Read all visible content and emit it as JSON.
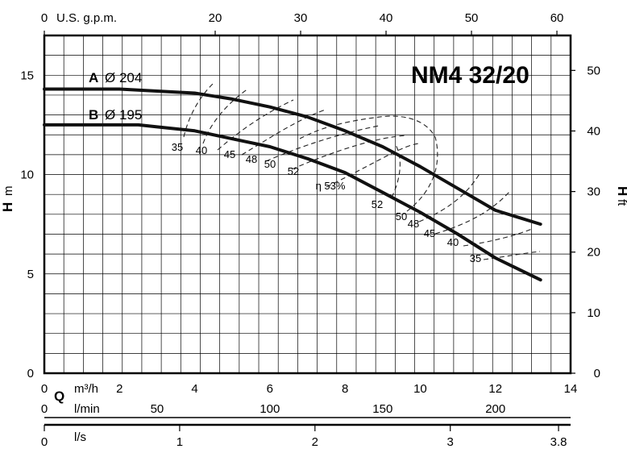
{
  "chart_data": {
    "type": "line",
    "title": "NM4 32/20",
    "xlabel_primary": "Q",
    "x_axes": [
      {
        "unit": "U.S. g.p.m.",
        "position": "top",
        "range": [
          0,
          60
        ],
        "ticks": [
          "0",
          "20",
          "30",
          "40",
          "50",
          "60"
        ]
      },
      {
        "unit": "m³/h",
        "position": "bottom",
        "range": [
          0,
          14
        ],
        "ticks": [
          "0",
          "2",
          "4",
          "6",
          "8",
          "10",
          "12",
          "14"
        ]
      },
      {
        "unit": "l/min",
        "position": "bottom",
        "range": [
          0,
          233.33
        ],
        "ticks": [
          "0",
          "50",
          "100",
          "150",
          "200"
        ]
      },
      {
        "unit": "l/s",
        "position": "bottom",
        "range": [
          0,
          3.889
        ],
        "ticks": [
          "0",
          "1",
          "2",
          "3",
          "3.8"
        ]
      }
    ],
    "y_axes": [
      {
        "label": "H",
        "unit": "m",
        "position": "left",
        "range": [
          0,
          17
        ],
        "ticks": [
          "0",
          "5",
          "10",
          "15"
        ]
      },
      {
        "label": "H",
        "unit": "ft",
        "position": "right",
        "range": [
          0,
          55.77
        ],
        "ticks": [
          "0",
          "10",
          "20",
          "30",
          "40",
          "50"
        ]
      }
    ],
    "grid": true,
    "series": [
      {
        "letter": "A",
        "name": "Ø 204",
        "x": [
          0,
          1,
          2,
          3,
          4,
          5,
          6,
          7,
          8,
          9,
          10,
          11,
          12,
          13.2
        ],
        "y": [
          14.3,
          14.3,
          14.3,
          14.2,
          14.1,
          13.8,
          13.4,
          12.9,
          12.2,
          11.4,
          10.4,
          9.3,
          8.2,
          7.5
        ]
      },
      {
        "letter": "B",
        "name": "Ø 195",
        "x": [
          0,
          1,
          2,
          2.5,
          3,
          4,
          5,
          6,
          7,
          8,
          9,
          10,
          11,
          12,
          13.2
        ],
        "y": [
          12.5,
          12.5,
          12.5,
          12.5,
          12.4,
          12.2,
          11.8,
          11.4,
          10.8,
          10.1,
          9.1,
          8.1,
          7.0,
          5.8,
          4.7
        ]
      }
    ],
    "efficiency_labels": [
      "35",
      "40",
      "45",
      "48",
      "50",
      "52",
      "η 53%",
      "52",
      "50",
      "48",
      "45",
      "40",
      "35"
    ]
  }
}
